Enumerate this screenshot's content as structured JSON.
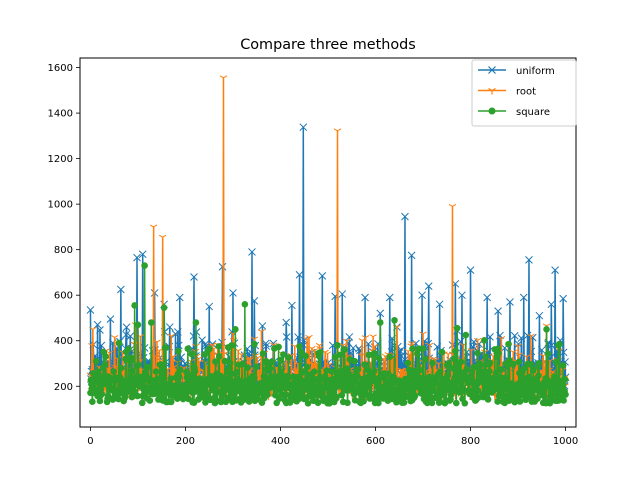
{
  "chart_data": {
    "type": "line",
    "title": "Compare three methods",
    "xlabel": "",
    "ylabel": "",
    "xlim": [
      -22,
      1022
    ],
    "ylim": [
      21,
      1642
    ],
    "xticks": [
      0,
      200,
      400,
      600,
      800,
      1000
    ],
    "yticks": [
      200,
      400,
      600,
      800,
      1000,
      1200,
      1400,
      1600
    ],
    "grid": false,
    "legend_position": "top-right",
    "n_points": 1001,
    "series": [
      {
        "name": "uniform",
        "color": "#1f77b4",
        "marker": "x",
        "baseline": 250,
        "spikes": [
          [
            0,
            535
          ],
          [
            15,
            470
          ],
          [
            42,
            495
          ],
          [
            64,
            625
          ],
          [
            98,
            765
          ],
          [
            110,
            780
          ],
          [
            135,
            610
          ],
          [
            155,
            560
          ],
          [
            188,
            590
          ],
          [
            218,
            680
          ],
          [
            250,
            550
          ],
          [
            278,
            725
          ],
          [
            300,
            610
          ],
          [
            340,
            790
          ],
          [
            345,
            575
          ],
          [
            362,
            465
          ],
          [
            412,
            480
          ],
          [
            424,
            555
          ],
          [
            440,
            690
          ],
          [
            448,
            1338
          ],
          [
            488,
            685
          ],
          [
            515,
            595
          ],
          [
            530,
            605
          ],
          [
            578,
            590
          ],
          [
            610,
            520
          ],
          [
            630,
            590
          ],
          [
            645,
            460
          ],
          [
            662,
            945
          ],
          [
            676,
            775
          ],
          [
            698,
            600
          ],
          [
            712,
            640
          ],
          [
            735,
            560
          ],
          [
            768,
            650
          ],
          [
            782,
            600
          ],
          [
            800,
            710
          ],
          [
            835,
            590
          ],
          [
            858,
            530
          ],
          [
            883,
            570
          ],
          [
            912,
            590
          ],
          [
            923,
            755
          ],
          [
            945,
            510
          ],
          [
            970,
            560
          ],
          [
            978,
            710
          ],
          [
            995,
            585
          ]
        ]
      },
      {
        "name": "root",
        "color": "#ff7f0e",
        "marker": "1",
        "baseline": 215,
        "spikes": [
          [
            5,
            450
          ],
          [
            95,
            470
          ],
          [
            133,
            900
          ],
          [
            152,
            855
          ],
          [
            170,
            420
          ],
          [
            280,
            1555
          ],
          [
            300,
            430
          ],
          [
            360,
            440
          ],
          [
            460,
            415
          ],
          [
            520,
            1322
          ],
          [
            532,
            380
          ],
          [
            645,
            460
          ],
          [
            700,
            430
          ],
          [
            762,
            990
          ],
          [
            785,
            380
          ],
          [
            890,
            350
          ],
          [
            960,
            465
          ]
        ]
      },
      {
        "name": "square",
        "color": "#2ca02c",
        "marker": "o",
        "baseline": 185,
        "spikes": [
          [
            12,
            310
          ],
          [
            30,
            295
          ],
          [
            60,
            390
          ],
          [
            93,
            555
          ],
          [
            100,
            470
          ],
          [
            114,
            730
          ],
          [
            128,
            480
          ],
          [
            155,
            545
          ],
          [
            205,
            365
          ],
          [
            222,
            480
          ],
          [
            240,
            340
          ],
          [
            270,
            375
          ],
          [
            283,
            310
          ],
          [
            305,
            450
          ],
          [
            325,
            560
          ],
          [
            345,
            385
          ],
          [
            400,
            315
          ],
          [
            440,
            375
          ],
          [
            480,
            345
          ],
          [
            520,
            380
          ],
          [
            556,
            310
          ],
          [
            598,
            345
          ],
          [
            610,
            480
          ],
          [
            640,
            490
          ],
          [
            700,
            365
          ],
          [
            740,
            350
          ],
          [
            772,
            455
          ],
          [
            790,
            425
          ],
          [
            858,
            365
          ],
          [
            880,
            385
          ],
          [
            960,
            450
          ],
          [
            985,
            380
          ]
        ]
      }
    ]
  }
}
